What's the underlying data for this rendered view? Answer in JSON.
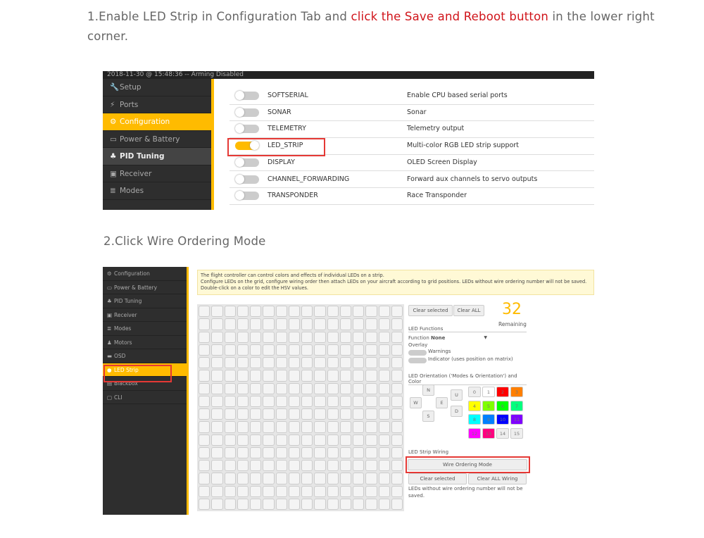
{
  "step1": {
    "prefix": "1.Enable LED Strip in Configuration Tab and ",
    "highlight": "click the Save and Reboot button",
    "suffix": " in the lower right corner."
  },
  "step2": {
    "text": "2.Click Wire Ordering Mode"
  },
  "shot1": {
    "status": "2018-11-30 @ 15:48:36 -- Arming Disabled",
    "nav": [
      {
        "label": "Setup",
        "icon": "wrench-icon",
        "glyph": "🔧"
      },
      {
        "label": "Ports",
        "icon": "plug-icon",
        "glyph": "⚡"
      },
      {
        "label": "Configuration",
        "icon": "gear-icon",
        "glyph": "⚙",
        "active": true
      },
      {
        "label": "Power & Battery",
        "icon": "battery-icon",
        "glyph": "▭"
      },
      {
        "label": "PID Tuning",
        "icon": "hierarchy-icon",
        "glyph": "♣",
        "hl": true
      },
      {
        "label": "Receiver",
        "icon": "receiver-icon",
        "glyph": "▣"
      },
      {
        "label": "Modes",
        "icon": "modes-icon",
        "glyph": "≣"
      }
    ],
    "features": [
      {
        "name": "SOFTSERIAL",
        "desc": "Enable CPU based serial ports",
        "on": false
      },
      {
        "name": "SONAR",
        "desc": "Sonar",
        "on": false
      },
      {
        "name": "TELEMETRY",
        "desc": "Telemetry output",
        "on": false
      },
      {
        "name": "LED_STRIP",
        "desc": "Multi-color RGB LED strip support",
        "on": true
      },
      {
        "name": "DISPLAY",
        "desc": "OLED Screen Display",
        "on": false
      },
      {
        "name": "CHANNEL_FORWARDING",
        "desc": "Forward aux channels to servo outputs",
        "on": false
      },
      {
        "name": "TRANSPONDER",
        "desc": "Race Transponder",
        "on": false
      }
    ]
  },
  "shot2": {
    "nav": [
      {
        "label": "Configuration",
        "glyph": "⚙"
      },
      {
        "label": "Power & Battery",
        "glyph": "▭"
      },
      {
        "label": "PID Tuning",
        "glyph": "♣"
      },
      {
        "label": "Receiver",
        "glyph": "▣"
      },
      {
        "label": "Modes",
        "glyph": "≣"
      },
      {
        "label": "Motors",
        "glyph": "♟"
      },
      {
        "label": "OSD",
        "glyph": "▬"
      },
      {
        "label": "LED Strip",
        "glyph": "●",
        "active": true
      },
      {
        "label": "Blackbox",
        "glyph": "▤"
      },
      {
        "label": "CLI",
        "glyph": "▢"
      }
    ],
    "note": [
      "The flight controller can control colors and effects of individual LEDs on a strip.",
      "Configure LEDs on the grid, configure wiring order then attach LEDs on your aircraft according to grid positions. LEDs without wire ordering number will not be saved.",
      "Double-click on a color to edit the HSV values."
    ],
    "clear_selected": "Clear selected",
    "clear_all": "Clear ALL",
    "remaining_count": "32",
    "remaining_label": "Remaining",
    "led_functions": "LED Functions",
    "function_label": "Function",
    "function_value": "None",
    "overlay": "Overlay",
    "warnings": "Warnings",
    "indicator": "Indicator (uses position on matrix)",
    "orientation_title": "LED Orientation ('Modes & Orientation') and Color",
    "directions": {
      "n": "N",
      "w": "W",
      "e": "E",
      "s": "S",
      "u": "U",
      "d": "D"
    },
    "colors": [
      {
        "n": "0",
        "c": "#eeeeee"
      },
      {
        "n": "1",
        "c": "#ffffff"
      },
      {
        "n": "2",
        "c": "#ff0000"
      },
      {
        "n": "3",
        "c": "#ff7f00"
      },
      {
        "n": "4",
        "c": "#ffff00"
      },
      {
        "n": "5",
        "c": "#7fff00"
      },
      {
        "n": "6",
        "c": "#00ff00"
      },
      {
        "n": "7",
        "c": "#00ff7f"
      },
      {
        "n": "8",
        "c": "#00ffff"
      },
      {
        "n": "9",
        "c": "#007fff"
      },
      {
        "n": "10",
        "c": "#0000ff"
      },
      {
        "n": "11",
        "c": "#7f00ff"
      },
      {
        "n": "12",
        "c": "#ff00ff"
      },
      {
        "n": "13",
        "c": "#ff007f"
      },
      {
        "n": "14",
        "c": "#eeeeee"
      },
      {
        "n": "15",
        "c": "#eeeeee"
      }
    ],
    "wiring_title": "LED Strip Wiring",
    "wire_mode": "Wire Ordering Mode",
    "clear_selected_wiring": "Clear selected",
    "clear_all_wiring": "Clear ALL Wiring",
    "wiring_note": "LEDs without wire ordering number will not be saved."
  }
}
